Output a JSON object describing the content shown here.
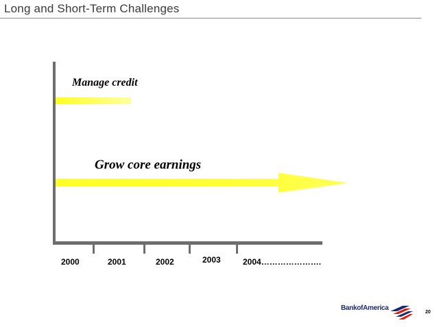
{
  "slide": {
    "title": "Long and Short-Term Challenges",
    "page_number": "20"
  },
  "timeline": {
    "bars": [
      {
        "label": "Manage credit",
        "start_year": "2000",
        "end_year": "2001",
        "style": "short-fading",
        "color": "#ffff33"
      },
      {
        "label": "Grow core earnings",
        "start_year": "2000",
        "end_year": "2004…………………..",
        "style": "arrow",
        "color": "#ffff33"
      }
    ],
    "years": [
      "2000",
      "2001",
      "2002",
      "2003",
      "2004…………………."
    ]
  },
  "logo": {
    "name": "Bank of America",
    "text": "BankofAmerica",
    "colors": {
      "blue": "#1a2a6c",
      "red": "#d81e05"
    }
  }
}
